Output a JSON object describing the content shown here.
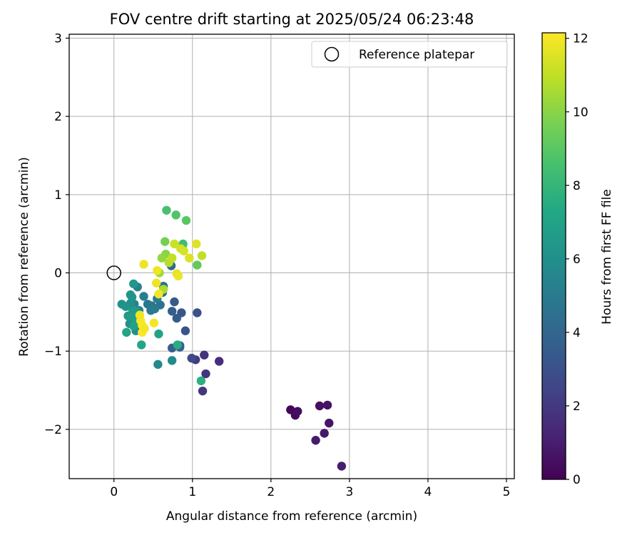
{
  "chart_data": {
    "type": "scatter",
    "title": "FOV centre drift starting at 2025/05/24 06:23:48",
    "xlabel": "Angular distance from reference (arcmin)",
    "ylabel": "Rotation from reference (arcmin)",
    "xlim": [
      -0.57,
      5.1
    ],
    "ylim": [
      -2.63,
      3.05
    ],
    "xticks": [
      0,
      1,
      2,
      3,
      4,
      5
    ],
    "yticks": [
      -2,
      -1,
      0,
      1,
      2,
      3
    ],
    "xtick_labels": [
      "0",
      "1",
      "2",
      "3",
      "4",
      "5"
    ],
    "ytick_labels": [
      "−2",
      "−1",
      "0",
      "1",
      "2",
      "3"
    ],
    "grid": true,
    "legend": {
      "placement": "top-right",
      "entries": [
        "Reference platepar"
      ]
    },
    "reference_point": {
      "x": 0,
      "y": 0,
      "label": "Reference platepar"
    },
    "colorbar": {
      "label": "Hours from first FF file",
      "range": [
        0,
        12.15
      ],
      "ticks": [
        0,
        2,
        4,
        6,
        8,
        10,
        12
      ],
      "tick_labels": [
        "0",
        "2",
        "4",
        "6",
        "8",
        "10",
        "12"
      ],
      "colormap": "viridis"
    },
    "series": [
      {
        "points": [
          [
            2.25,
            -1.75,
            0.2
          ],
          [
            2.31,
            -1.82,
            0.3
          ],
          [
            2.34,
            -1.77,
            0.4
          ],
          [
            2.62,
            -1.7,
            0.5
          ],
          [
            2.72,
            -1.69,
            0.6
          ],
          [
            2.74,
            -1.92,
            0.7
          ],
          [
            2.68,
            -2.05,
            0.8
          ],
          [
            2.57,
            -2.14,
            0.9
          ],
          [
            2.9,
            -2.47,
            1.0
          ],
          [
            1.34,
            -1.13,
            1.6
          ],
          [
            1.15,
            -1.05,
            1.7
          ],
          [
            1.17,
            -1.29,
            1.8
          ],
          [
            1.13,
            -1.51,
            1.9
          ],
          [
            1.04,
            -1.11,
            2.0
          ],
          [
            0.99,
            -1.09,
            2.7
          ],
          [
            1.06,
            -0.51,
            3.0
          ],
          [
            0.91,
            -0.74,
            3.1
          ],
          [
            0.86,
            -0.51,
            3.2
          ],
          [
            0.84,
            -0.93,
            3.3
          ],
          [
            0.77,
            -0.37,
            3.4
          ],
          [
            0.8,
            -0.58,
            3.5
          ],
          [
            0.74,
            -0.49,
            3.6
          ],
          [
            0.74,
            -0.96,
            3.7
          ],
          [
            0.84,
            -0.95,
            3.8
          ],
          [
            0.73,
            0.09,
            4.2
          ],
          [
            0.87,
            0.32,
            4.3
          ],
          [
            0.62,
            -0.25,
            4.4
          ],
          [
            0.63,
            -0.17,
            4.5
          ],
          [
            0.59,
            -0.41,
            4.6
          ],
          [
            0.48,
            -0.42,
            4.7
          ],
          [
            0.43,
            -0.4,
            4.8
          ],
          [
            0.52,
            -0.46,
            4.9
          ],
          [
            0.47,
            -0.48,
            5.0
          ],
          [
            0.55,
            -0.33,
            5.1
          ],
          [
            0.38,
            -0.3,
            5.2
          ],
          [
            0.3,
            -0.18,
            5.3
          ],
          [
            0.26,
            -0.4,
            5.4
          ],
          [
            0.32,
            -0.48,
            5.5
          ],
          [
            0.23,
            -0.58,
            5.6
          ],
          [
            0.56,
            -1.17,
            5.7
          ],
          [
            0.74,
            -1.12,
            5.8
          ],
          [
            0.28,
            -0.74,
            5.9
          ],
          [
            0.2,
            -0.65,
            6.0
          ],
          [
            0.21,
            -0.39,
            6.0
          ],
          [
            0.1,
            -0.4,
            6.1
          ],
          [
            0.15,
            -0.43,
            6.2
          ],
          [
            0.21,
            -0.28,
            6.3
          ],
          [
            0.23,
            -0.31,
            6.3
          ],
          [
            0.25,
            -0.14,
            6.4
          ],
          [
            0.18,
            -0.55,
            6.5
          ],
          [
            0.24,
            -0.49,
            6.6
          ],
          [
            0.27,
            -0.48,
            6.6
          ],
          [
            0.22,
            -0.56,
            6.7
          ],
          [
            0.29,
            -0.62,
            6.8
          ],
          [
            0.25,
            -0.68,
            6.9
          ],
          [
            0.57,
            -0.78,
            7.0
          ],
          [
            0.16,
            -0.76,
            7.1
          ],
          [
            0.35,
            -0.92,
            7.2
          ],
          [
            0.81,
            -0.92,
            7.5
          ],
          [
            1.11,
            -1.38,
            7.7
          ],
          [
            0.88,
            0.37,
            8.4
          ],
          [
            0.67,
            0.8,
            8.6
          ],
          [
            0.79,
            0.74,
            8.8
          ],
          [
            0.92,
            0.67,
            9.0
          ],
          [
            1.06,
            0.1,
            9.2
          ],
          [
            0.65,
            0.4,
            9.6
          ],
          [
            0.66,
            0.24,
            10.0
          ],
          [
            0.61,
            0.19,
            10.2
          ],
          [
            0.58,
            0.0,
            10.4
          ],
          [
            0.63,
            -0.21,
            10.6
          ],
          [
            0.7,
            0.13,
            10.8
          ],
          [
            0.74,
            0.19,
            11.0
          ],
          [
            0.77,
            0.37,
            11.2
          ],
          [
            0.85,
            0.31,
            11.3
          ],
          [
            0.89,
            0.28,
            11.4
          ],
          [
            0.96,
            0.19,
            11.5
          ],
          [
            1.05,
            0.37,
            11.6
          ],
          [
            1.12,
            0.22,
            11.0
          ],
          [
            0.8,
            -0.01,
            11.7
          ],
          [
            0.82,
            -0.04,
            11.8
          ],
          [
            0.54,
            -0.13,
            11.9
          ],
          [
            0.57,
            -0.27,
            12.0
          ],
          [
            0.55,
            0.03,
            11.9
          ],
          [
            0.38,
            0.11,
            11.8
          ],
          [
            0.34,
            -0.61,
            12.0
          ],
          [
            0.36,
            -0.67,
            12.1
          ],
          [
            0.51,
            -0.64,
            12.0
          ],
          [
            0.36,
            -0.76,
            12.1
          ],
          [
            0.39,
            -0.71,
            12.0
          ],
          [
            0.33,
            -0.54,
            11.9
          ]
        ]
      }
    ]
  }
}
